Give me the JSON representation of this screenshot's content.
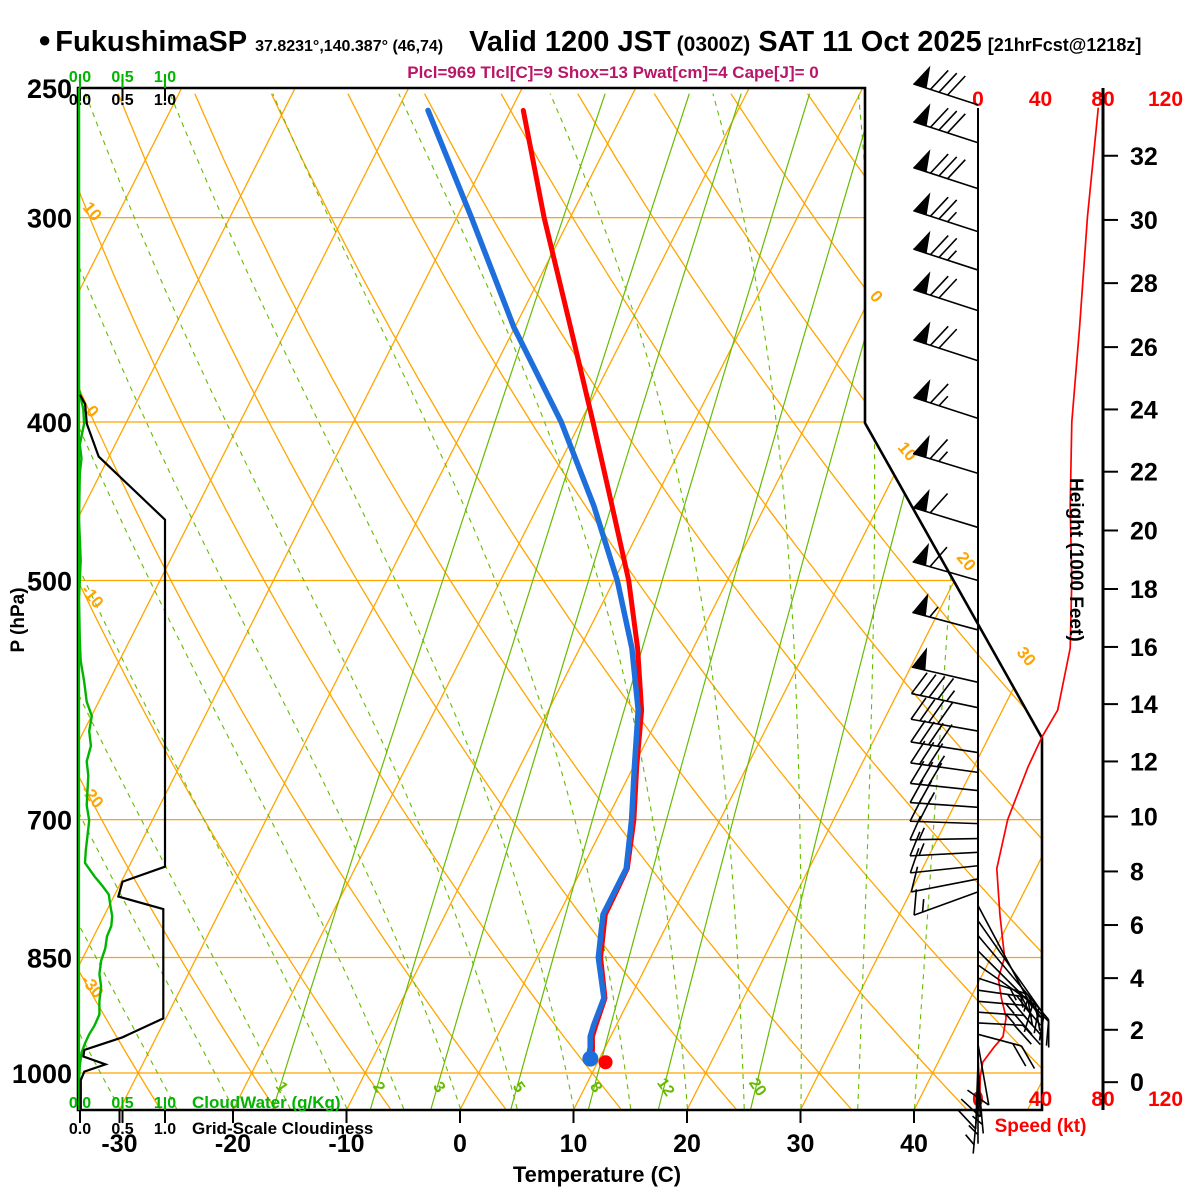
{
  "header": {
    "bullet": "●",
    "station": "FukushimaSP",
    "coords": "37.8231°,140.387° (46,74)",
    "valid": "Valid 1200 JST",
    "zulu": "(0300Z)",
    "date": "SAT 11 Oct 2025",
    "fcst": "[21hrFcst@1218z]",
    "params": "Plcl=969 Tlcl[C]=9 Shox=13 Pwat[cm]=4 Cape[J]= 0"
  },
  "colors": {
    "orange": "#FFA500",
    "family_green": "#66BB00",
    "bright_green": "#00B400",
    "red": "#FF0000",
    "blue": "#1E6FDC",
    "magenta": "#B81668",
    "black": "#000000"
  },
  "chart_data": {
    "type": "skewt-log-p sounding",
    "pressure_axis": {
      "label": "P (hPa)",
      "ticks": [
        250,
        300,
        400,
        500,
        700,
        850,
        1000
      ],
      "gridlines": [
        300,
        400,
        500,
        700,
        850,
        1000
      ],
      "range": [
        250,
        1054
      ]
    },
    "temp_axis": {
      "label": "Temperature (C)",
      "ticks": [
        -30,
        -20,
        -10,
        0,
        10,
        20,
        30,
        40
      ]
    },
    "speed_axis": {
      "label": "Speed (kt)",
      "ticks": [
        0,
        40,
        80,
        120
      ]
    },
    "height_axis": {
      "label": "Height (1000 Feet)",
      "ticks": [
        [
          0,
          1013
        ],
        [
          2,
          941
        ],
        [
          4,
          875
        ],
        [
          6,
          812
        ],
        [
          8,
          753
        ],
        [
          10,
          697
        ],
        [
          12,
          645
        ],
        [
          14,
          595
        ],
        [
          16,
          549
        ],
        [
          18,
          506
        ],
        [
          20,
          466
        ],
        [
          22,
          429
        ],
        [
          24,
          393
        ],
        [
          26,
          360
        ],
        [
          28,
          329
        ],
        [
          30,
          301
        ],
        [
          32,
          275
        ]
      ]
    },
    "cloud_scales": {
      "cloudwater_label": "CloudWater (g/Kg)",
      "cloudiness_label": "Grid-Scale Cloudiness",
      "tick_labels": [
        "0.0",
        "0.5",
        "1.0"
      ],
      "tick_values": [
        0.0,
        0.5,
        1.0
      ]
    },
    "isotherms": {
      "start": -120,
      "end": 60,
      "step": 10,
      "labels": [
        [
          0,
          872,
          300
        ],
        [
          10,
          903,
          455
        ],
        [
          20,
          962,
          565
        ],
        [
          30,
          1022,
          660
        ]
      ]
    },
    "dry_adiabats": {
      "start": -40,
      "end": 150,
      "step": 10,
      "labels": [
        [
          10,
          215
        ],
        [
          0,
          415
        ],
        [
          -10,
          600
        ],
        [
          -20,
          800
        ],
        [
          -30,
          990
        ]
      ]
    },
    "moist_adiabats": {
      "start": -40,
      "end": 40,
      "step": 5
    },
    "mixing_ratio_lines": [
      1,
      2,
      3,
      5,
      8,
      12,
      20
    ],
    "temperature_profile": [
      [
        258,
        -38.9
      ],
      [
        300,
        -32.3
      ],
      [
        350,
        -25.1
      ],
      [
        400,
        -18.9
      ],
      [
        450,
        -13.5
      ],
      [
        500,
        -8.7
      ],
      [
        550,
        -4.9
      ],
      [
        600,
        -1.8
      ],
      [
        650,
        0.3
      ],
      [
        700,
        2.4
      ],
      [
        750,
        4.0
      ],
      [
        800,
        4.1
      ],
      [
        850,
        5.6
      ],
      [
        900,
        7.8
      ],
      [
        935,
        8.2
      ],
      [
        950,
        8.4
      ],
      [
        965,
        8.9
      ],
      [
        975,
        9.2
      ],
      [
        982,
        9.0
      ]
    ],
    "dewpoint_profile": [
      [
        258,
        -47.3
      ],
      [
        300,
        -38.7
      ],
      [
        350,
        -30.1
      ],
      [
        400,
        -21.7
      ],
      [
        450,
        -15.1
      ],
      [
        500,
        -9.7
      ],
      [
        550,
        -5.4
      ],
      [
        600,
        -2.1
      ],
      [
        650,
        0.1
      ],
      [
        700,
        2.2
      ],
      [
        750,
        3.9
      ],
      [
        800,
        3.9
      ],
      [
        850,
        5.4
      ],
      [
        900,
        7.7
      ],
      [
        935,
        8.0
      ],
      [
        950,
        8.2
      ],
      [
        965,
        8.7
      ],
      [
        975,
        8.9
      ]
    ],
    "surface_temp_dot": [
      985,
      10.7
    ],
    "surface_dew_dot": [
      980,
      9.2
    ],
    "cloud_water_profile": [
      [
        250,
        0
      ],
      [
        382,
        0
      ],
      [
        393,
        0.05
      ],
      [
        401,
        0.06
      ],
      [
        413,
        0.01
      ],
      [
        421,
        0.03
      ],
      [
        430,
        0.01
      ],
      [
        459,
        0.0
      ],
      [
        486,
        0.02
      ],
      [
        513,
        0.0
      ],
      [
        544,
        0.01
      ],
      [
        560,
        0.02
      ],
      [
        576,
        0.06
      ],
      [
        593,
        0.09
      ],
      [
        605,
        0.15
      ],
      [
        618,
        0.12
      ],
      [
        631,
        0.14
      ],
      [
        645,
        0.09
      ],
      [
        658,
        0.11
      ],
      [
        672,
        0.1
      ],
      [
        686,
        0.09
      ],
      [
        701,
        0.12
      ],
      [
        716,
        0.1
      ],
      [
        731,
        0.08
      ],
      [
        744,
        0.07
      ],
      [
        758,
        0.18
      ],
      [
        769,
        0.28
      ],
      [
        778,
        0.35
      ],
      [
        791,
        0.37
      ],
      [
        802,
        0.39
      ],
      [
        813,
        0.38
      ],
      [
        825,
        0.33
      ],
      [
        839,
        0.31
      ],
      [
        854,
        0.26
      ],
      [
        870,
        0.24
      ],
      [
        885,
        0.26
      ],
      [
        904,
        0.24
      ],
      [
        921,
        0.24
      ],
      [
        936,
        0.18
      ],
      [
        947,
        0.12
      ],
      [
        959,
        0.07
      ],
      [
        972,
        0.03
      ],
      [
        990,
        0.01
      ],
      [
        1011,
        0
      ],
      [
        1053,
        0
      ]
    ],
    "cloudiness_profile": [
      [
        385,
        0
      ],
      [
        390,
        0.06
      ],
      [
        401,
        0.08
      ],
      [
        420,
        0.22
      ],
      [
        459,
        1.0
      ],
      [
        748,
        1.0
      ],
      [
        764,
        0.5
      ],
      [
        780,
        0.45
      ],
      [
        794,
        0.98
      ],
      [
        926,
        0.98
      ],
      [
        951,
        0.5
      ],
      [
        968,
        0.05
      ],
      [
        977,
        0.04
      ],
      [
        988,
        0.3
      ],
      [
        998,
        0.05
      ],
      [
        1010,
        0.01
      ],
      [
        1053,
        0.01
      ]
    ],
    "wind_speed_profile": [
      [
        257,
        77
      ],
      [
        300,
        70
      ],
      [
        350,
        65
      ],
      [
        400,
        60
      ],
      [
        450,
        59
      ],
      [
        500,
        60
      ],
      [
        550,
        59
      ],
      [
        600,
        51
      ],
      [
        623,
        41
      ],
      [
        650,
        32
      ],
      [
        700,
        19
      ],
      [
        750,
        12
      ],
      [
        800,
        14
      ],
      [
        850,
        17
      ],
      [
        875,
        13
      ],
      [
        900,
        15
      ],
      [
        925,
        18
      ],
      [
        950,
        16
      ],
      [
        965,
        10
      ],
      [
        985,
        3
      ],
      [
        1005,
        1.5
      ],
      [
        1047,
        1
      ]
    ],
    "wind_barbs": [
      [
        256,
        80,
        162
      ],
      [
        270,
        80,
        162
      ],
      [
        288,
        78,
        162
      ],
      [
        306,
        75,
        162
      ],
      [
        323,
        74,
        162
      ],
      [
        342,
        72,
        162
      ],
      [
        367,
        70,
        162
      ],
      [
        398,
        66,
        162
      ],
      [
        430,
        63,
        163
      ],
      [
        464,
        60,
        163
      ],
      [
        500,
        58,
        164
      ],
      [
        536,
        55,
        165
      ],
      [
        577,
        52,
        167
      ],
      [
        598,
        46,
        168
      ],
      [
        618,
        42,
        170
      ],
      [
        637,
        38,
        171
      ],
      [
        655,
        33,
        172
      ],
      [
        672,
        29,
        174
      ],
      [
        688,
        25,
        176
      ],
      [
        704,
        21,
        178
      ],
      [
        719,
        17,
        181
      ],
      [
        733,
        14,
        183
      ],
      [
        747,
        12,
        186
      ],
      [
        761,
        11,
        191
      ],
      [
        775,
        13,
        200
      ],
      [
        790,
        16,
        -62,
        115
      ],
      [
        807,
        18,
        -55,
        115
      ],
      [
        824,
        20,
        -50,
        110
      ],
      [
        842,
        22,
        -45,
        100
      ],
      [
        859,
        24,
        -35,
        70
      ],
      [
        875,
        25,
        -18,
        52
      ],
      [
        890,
        25,
        -8,
        48
      ],
      [
        904,
        24,
        -5,
        46
      ],
      [
        918,
        23,
        -4,
        46
      ],
      [
        932,
        21,
        -3,
        45
      ],
      [
        947,
        18,
        -15,
        45
      ],
      [
        960,
        12,
        -80,
        62
      ],
      [
        972,
        10,
        -88,
        64
      ],
      [
        986,
        9,
        -92,
        66
      ],
      [
        1001,
        7,
        -85,
        60
      ],
      [
        1018,
        5,
        -90,
        58
      ],
      [
        1037,
        4,
        -95,
        55
      ]
    ]
  }
}
